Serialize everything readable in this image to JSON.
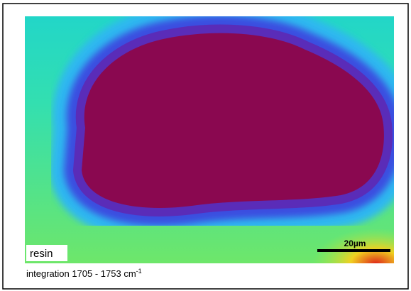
{
  "image": {
    "label": "resin",
    "scale_bar": "20µm"
  },
  "caption": {
    "text": "integration 1705 - 1753 cm",
    "superscript": "-1"
  }
}
